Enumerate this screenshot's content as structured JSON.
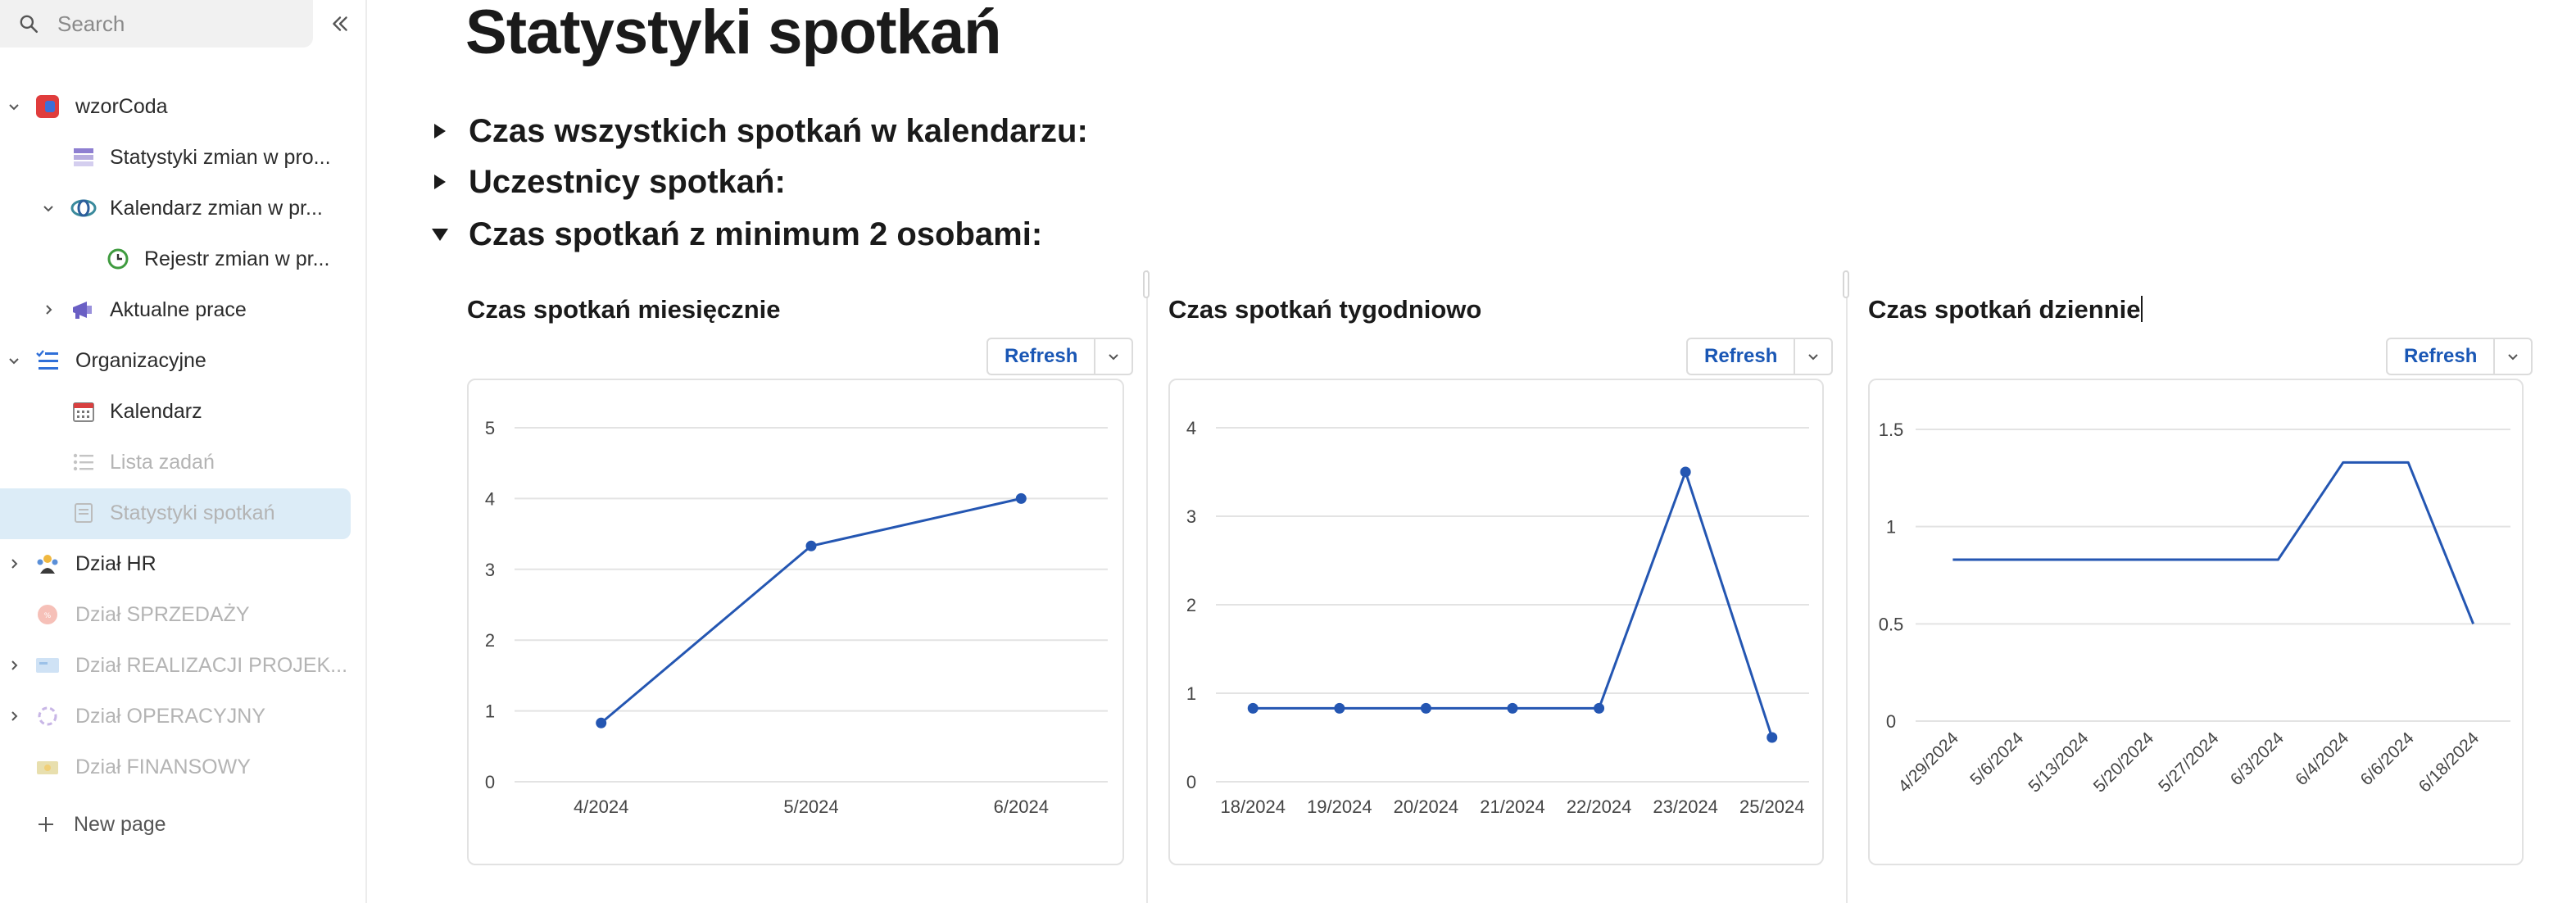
{
  "sidebar": {
    "search_placeholder": "Search",
    "items": [
      {
        "label": "wzorCoda",
        "icon": "coda-logo-icon"
      },
      {
        "label": "Statystyki zmian w pro...",
        "icon": "table-icon"
      },
      {
        "label": "Kalendarz zmian w pr...",
        "icon": "sync-icon"
      },
      {
        "label": "Rejestr zmian w pr...",
        "icon": "clock-icon"
      },
      {
        "label": "Aktualne prace",
        "icon": "megaphone-icon"
      },
      {
        "label": "Organizacyjne",
        "icon": "checklist-icon"
      },
      {
        "label": "Kalendarz",
        "icon": "calendar-icon"
      },
      {
        "label": "Lista zadań",
        "icon": "list-icon"
      },
      {
        "label": "Statystyki spotkań",
        "icon": "page-icon"
      },
      {
        "label": "Dział HR",
        "icon": "people-icon"
      },
      {
        "label": "Dział SPRZEDAŻY",
        "icon": "sale-badge-icon"
      },
      {
        "label": "Dział REALIZACJI PROJEK...",
        "icon": "card-icon"
      },
      {
        "label": "Dział OPERACYJNY",
        "icon": "cycle-icon"
      },
      {
        "label": "Dział FINANSOWY",
        "icon": "money-icon"
      }
    ],
    "new_page_label": "New page"
  },
  "page": {
    "title": "Statystyki spotkań",
    "sections": [
      {
        "title": "Czas wszystkich spotkań w kalendarzu:",
        "expanded": false
      },
      {
        "title": "Uczestnicy spotkań:",
        "expanded": false
      },
      {
        "title": "Czas spotkań z minimum 2 osobami:",
        "expanded": true
      }
    ]
  },
  "refresh_label": "Refresh",
  "colors": {
    "accent": "#1a57b5",
    "line": "#2456b2",
    "selected": "#dcecf7"
  },
  "chart_data": [
    {
      "type": "line",
      "title": "Czas spotkań miesięcznie",
      "categories": [
        "4/2024",
        "5/2024",
        "6/2024"
      ],
      "values": [
        0.83,
        3.33,
        4.0
      ],
      "yticks": [
        "0",
        "1",
        "2",
        "3",
        "4",
        "5"
      ],
      "ylim": [
        0,
        5
      ],
      "markers": true
    },
    {
      "type": "line",
      "title": "Czas spotkań tygodniowo",
      "categories": [
        "18/2024",
        "19/2024",
        "20/2024",
        "21/2024",
        "22/2024",
        "23/2024",
        "25/2024"
      ],
      "values": [
        0.83,
        0.83,
        0.83,
        0.83,
        0.83,
        3.5,
        0.5
      ],
      "yticks": [
        "0",
        "1",
        "2",
        "3",
        "4"
      ],
      "ylim": [
        0,
        4
      ],
      "markers": true
    },
    {
      "type": "line",
      "title": "Czas spotkań dziennie",
      "categories": [
        "4/29/2024",
        "5/6/2024",
        "5/13/2024",
        "5/20/2024",
        "5/27/2024",
        "6/3/2024",
        "6/4/2024",
        "6/6/2024",
        "6/18/2024"
      ],
      "values": [
        0.83,
        0.83,
        0.83,
        0.83,
        0.83,
        0.83,
        1.33,
        1.33,
        0.5
      ],
      "yticks": [
        "0",
        "0.5",
        "1",
        "1.5"
      ],
      "ylim": [
        0,
        1.5
      ],
      "markers": false,
      "rotate_labels": true
    }
  ]
}
